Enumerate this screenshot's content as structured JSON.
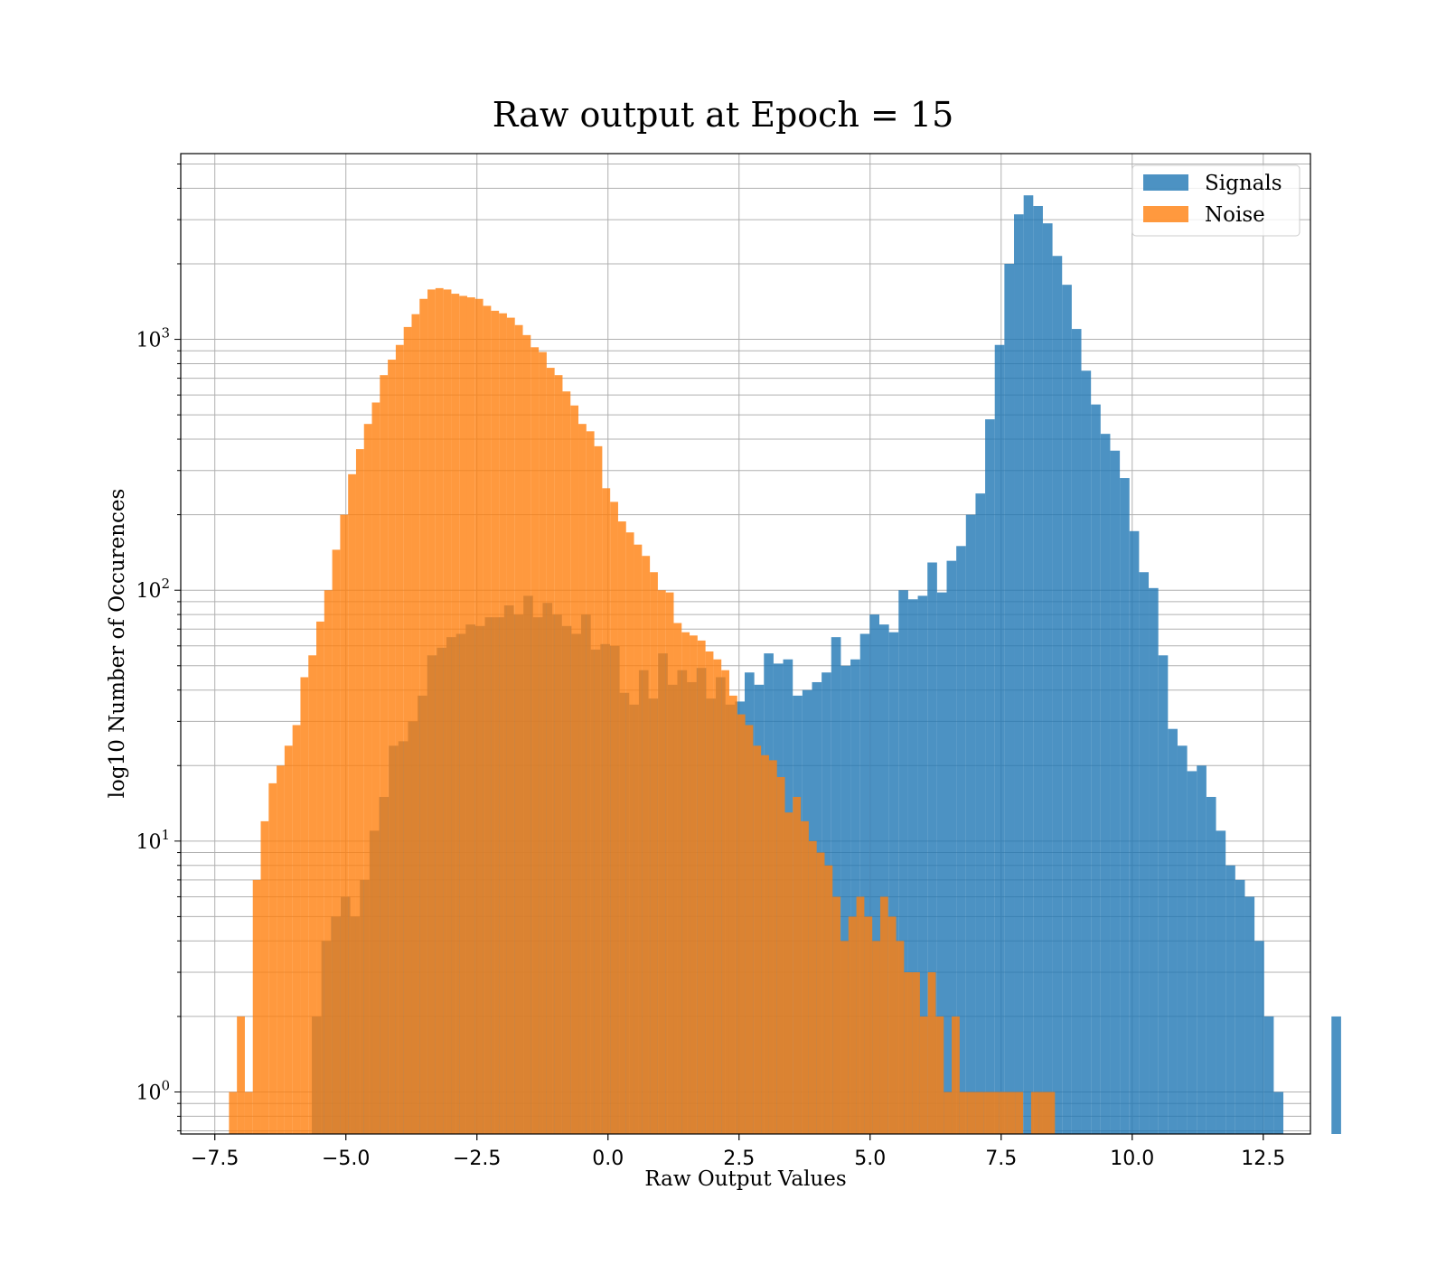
{
  "chart_data": {
    "type": "bar",
    "title": "Raw output at Epoch = 15",
    "xlabel": "Raw Output Values",
    "ylabel": "log10 Number of Occurences",
    "xlim": [
      -8.15,
      13.4
    ],
    "ylim": [
      0.68,
      5500
    ],
    "yscale": "log",
    "xticks": [
      -7.5,
      -5.0,
      -2.5,
      0.0,
      2.5,
      5.0,
      7.5,
      10.0,
      12.5
    ],
    "xtick_labels": [
      "−7.5",
      "−5.0",
      "−2.5",
      "0.0",
      "2.5",
      "5.0",
      "7.5",
      "10.0",
      "12.5"
    ],
    "ytick_labels": [
      {
        "base": "10",
        "exp": "0",
        "value": 1
      },
      {
        "base": "10",
        "exp": "1",
        "value": 10
      },
      {
        "base": "10",
        "exp": "2",
        "value": 100
      },
      {
        "base": "10",
        "exp": "3",
        "value": 1000
      }
    ],
    "grid": true,
    "legend_position": "top-right",
    "series": [
      {
        "name": "Signals",
        "color": "#1f77b4",
        "alpha": 0.8,
        "bin_start": -5.65,
        "bin_width": 0.1835,
        "values": [
          2,
          4,
          5,
          6,
          5,
          7,
          11,
          15,
          24,
          25,
          30,
          38,
          55,
          59,
          65,
          67,
          73,
          72,
          78,
          78,
          87,
          80,
          95,
          78,
          89,
          80,
          72,
          67,
          80,
          58,
          61,
          60,
          39,
          35,
          48,
          37,
          56,
          42,
          48,
          43,
          49,
          37,
          45,
          35,
          36,
          47,
          42,
          56,
          51,
          53,
          38,
          40,
          43,
          47,
          65,
          50,
          53,
          67,
          80,
          73,
          68,
          100,
          92,
          95,
          129,
          98,
          131,
          150,
          200,
          243,
          480,
          950,
          2000,
          3150,
          3750,
          3400,
          2900,
          2150,
          1650,
          1100,
          750,
          550,
          420,
          360,
          280,
          172,
          118,
          102,
          55,
          28,
          24,
          19,
          20,
          15,
          11,
          8,
          7,
          6,
          4,
          2,
          1,
          0,
          0,
          0,
          0,
          0,
          2
        ]
      },
      {
        "name": "Noise",
        "color": "#ff7f0e",
        "alpha": 0.8,
        "bin_start": -7.23,
        "bin_width": 0.1515,
        "values": [
          1,
          2,
          1,
          7,
          12,
          17,
          20,
          24,
          29,
          45,
          55,
          75,
          100,
          145,
          200,
          290,
          365,
          460,
          560,
          720,
          830,
          950,
          1120,
          1260,
          1450,
          1580,
          1600,
          1580,
          1520,
          1490,
          1470,
          1450,
          1360,
          1300,
          1270,
          1220,
          1140,
          1040,
          930,
          890,
          770,
          720,
          620,
          545,
          460,
          430,
          375,
          255,
          225,
          188,
          170,
          152,
          137,
          118,
          100,
          98,
          74,
          68,
          66,
          63,
          57,
          53,
          48,
          38,
          32,
          29,
          24,
          22,
          21,
          18,
          13,
          15,
          12,
          10,
          9,
          8,
          6,
          4,
          5,
          6,
          5,
          4,
          6,
          5,
          4,
          3,
          3,
          2,
          3,
          2,
          1,
          2,
          1,
          1,
          1,
          1,
          1,
          1,
          1,
          1,
          0,
          1,
          1,
          1,
          0,
          0,
          0,
          0,
          0
        ]
      }
    ]
  }
}
